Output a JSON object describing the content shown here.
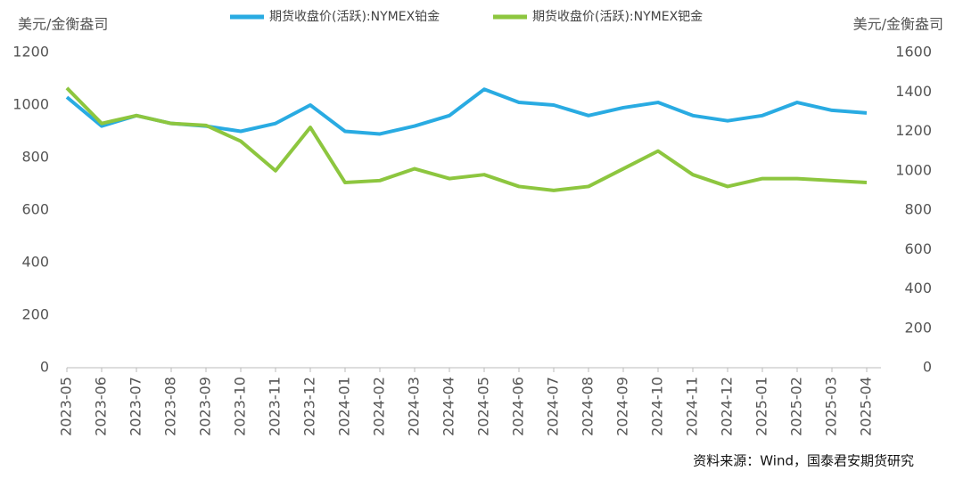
{
  "chart_data": {
    "type": "line",
    "y_label": "美元/金衡盎司",
    "y2_label": "美元/金衡盎司",
    "source": "资料来源：Wind，国泰君安期货研究",
    "categories": [
      "2023-05",
      "2023-06",
      "2023-07",
      "2023-08",
      "2023-09",
      "2023-10",
      "2023-11",
      "2023-12",
      "2024-01",
      "2024-02",
      "2024-03",
      "2024-04",
      "2024-05",
      "2024-06",
      "2024-07",
      "2024-08",
      "2024-09",
      "2024-10",
      "2024-11",
      "2024-12",
      "2025-01",
      "2025-02",
      "2025-03",
      "2025-04"
    ],
    "series": [
      {
        "name": "期货收盘价(活跃):NYMEX铂金",
        "color": "#29abe2",
        "values": [
          1030,
          920,
          960,
          930,
          920,
          900,
          930,
          1000,
          900,
          890,
          920,
          960,
          1060,
          1010,
          1000,
          960,
          990,
          1010,
          960,
          940,
          960,
          1010,
          980,
          970
        ]
      },
      {
        "name": "期货收盘价(活跃):NYMEX钯金",
        "color": "#8dc63f",
        "axis": "y2",
        "values": [
          1420,
          1240,
          1280,
          1240,
          1230,
          1150,
          1000,
          1220,
          940,
          950,
          1010,
          960,
          980,
          920,
          900,
          920,
          1010,
          1100,
          980,
          920,
          960,
          960,
          950,
          940
        ]
      }
    ],
    "ylim": [
      0,
      1200
    ],
    "yticks": [
      0,
      200,
      400,
      600,
      800,
      1000,
      1200
    ],
    "y2lim": [
      0,
      1600
    ],
    "y2ticks": [
      0,
      200,
      400,
      600,
      800,
      1000,
      1200,
      1400,
      1600
    ]
  }
}
